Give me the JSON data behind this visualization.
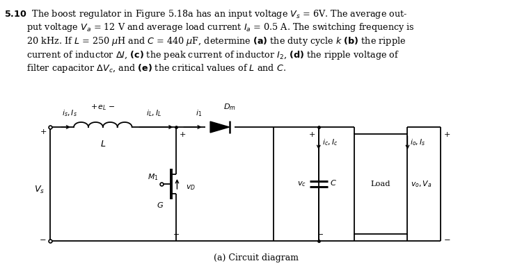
{
  "bg_color": "#ffffff",
  "caption": "(a) Circuit diagram",
  "figsize": [
    7.5,
    3.86
  ],
  "dpi": 100,
  "text_lines": [
    [
      "bold",
      "5.10",
      8,
      14
    ],
    [
      "normal",
      "  The boost regulator in Figure 5.18a has an input voltage $V_s$ = 6V. The average out-",
      8,
      14
    ],
    [
      "normal",
      "      put voltage $V_a$ = 12 V and average load current $I_a$ = 0.5 A. The switching frequency is",
      8,
      28
    ],
    [
      "normal",
      "      20 kHz. If $L$ = 250 μH and $C$ = 440 μF, determine ",
      8,
      42
    ],
    [
      "normal",
      "      current of inductor Δ$I$, ",
      8,
      56
    ],
    [
      "normal",
      "      filter capacitor Δ$V_c$, and ",
      8,
      70
    ]
  ]
}
